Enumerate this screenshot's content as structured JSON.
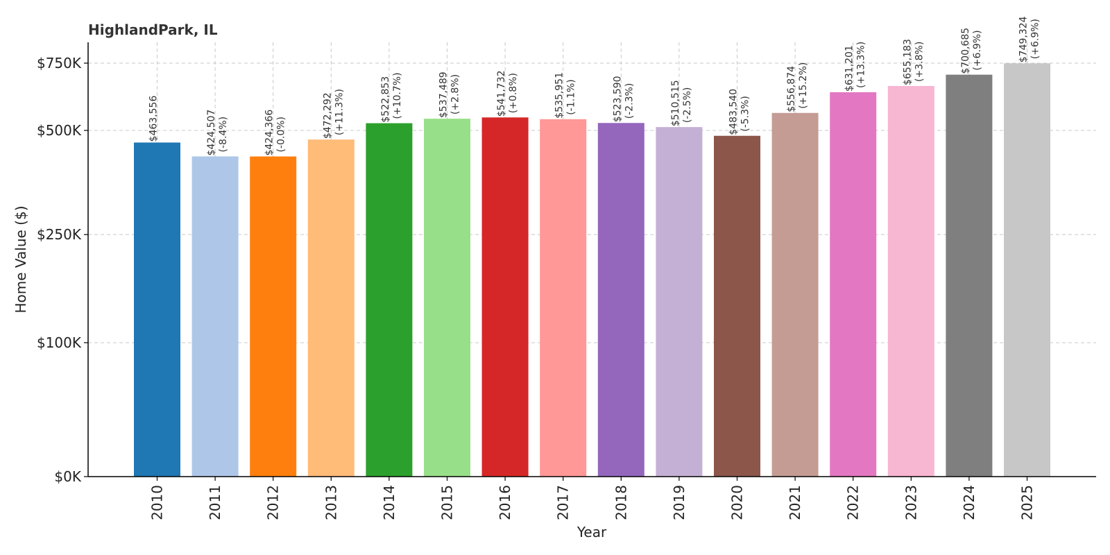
{
  "chart_data": {
    "type": "bar",
    "title": "HighlandPark, IL",
    "xlabel": "Year",
    "ylabel": "Home Value ($)",
    "categories": [
      "2010",
      "2011",
      "2012",
      "2013",
      "2014",
      "2015",
      "2016",
      "2017",
      "2018",
      "2019",
      "2020",
      "2021",
      "2022",
      "2023",
      "2024",
      "2025"
    ],
    "values": [
      463556,
      424507,
      424366,
      472292,
      522853,
      537489,
      541732,
      535951,
      523590,
      510515,
      483540,
      556874,
      631201,
      655183,
      700685,
      749324
    ],
    "value_labels": [
      "$463,556",
      "$424,507",
      "$424,366",
      "$472,292",
      "$522,853",
      "$537,489",
      "$541,732",
      "$535,951",
      "$523,590",
      "$510,515",
      "$483,540",
      "$556,874",
      "$631,201",
      "$655,183",
      "$700,685",
      "$749,324"
    ],
    "change_labels": [
      "",
      "(-8.4%)",
      "(-0.0%)",
      "(+11.3%)",
      "(+10.7%)",
      "(+2.8%)",
      "(+0.8%)",
      "(-1.1%)",
      "(-2.3%)",
      "(-2.5%)",
      "(-5.3%)",
      "(+15.2%)",
      "(+13.3%)",
      "(+3.8%)",
      "(+6.9%)",
      "(+6.9%)"
    ],
    "colors": [
      "#1f77b4",
      "#aec7e8",
      "#ff7f0e",
      "#ffbb78",
      "#2ca02c",
      "#98df8a",
      "#d62728",
      "#ff9896",
      "#9467bd",
      "#c5b0d5",
      "#8c564b",
      "#c49c94",
      "#e377c2",
      "#f7b6d2",
      "#7f7f7f",
      "#c7c7c7"
    ],
    "yticks": [
      0,
      100000,
      250000,
      500000,
      750000
    ],
    "ytick_labels": [
      "$0K",
      "$100K",
      "$250K",
      "$500K",
      "$750K"
    ],
    "y_scale": "symlog",
    "grid": true
  }
}
